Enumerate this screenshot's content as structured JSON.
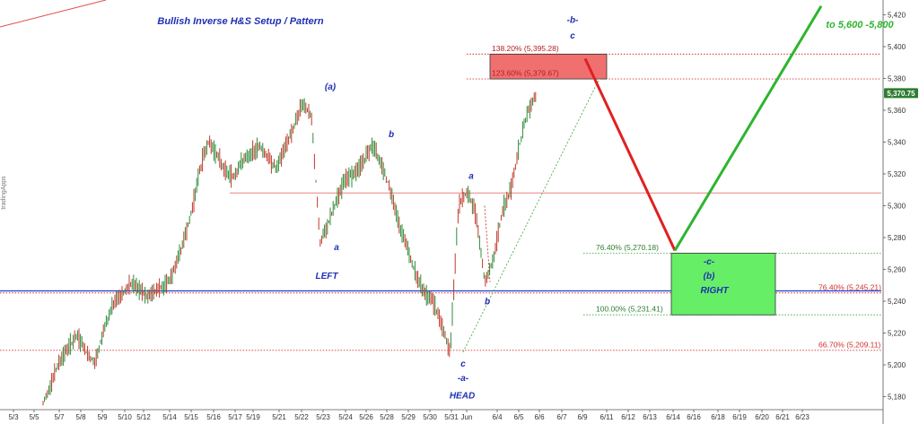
{
  "chart_data": {
    "type": "candlestick-annotated",
    "title": "Bullish Inverse H&S Setup / Pattern",
    "y_axis": {
      "ylim": [
        5170,
        5426
      ],
      "ticks": [
        "5,180",
        "5,200",
        "5,220",
        "5,240",
        "5,260",
        "5,280",
        "5,300",
        "5,320",
        "5,340",
        "5,360",
        "5,380",
        "5,400",
        "5,420"
      ],
      "tick_values": [
        5180,
        5200,
        5220,
        5240,
        5260,
        5280,
        5300,
        5320,
        5340,
        5360,
        5380,
        5400,
        5420
      ]
    },
    "x_axis": {
      "ticks": [
        "5/3",
        "5/5",
        "5/7",
        "5/8",
        "5/9",
        "5/10",
        "5/12",
        "5/14",
        "5/15",
        "5/16",
        "5/17",
        "5/19",
        "5/21",
        "5/22",
        "5/23",
        "5/24",
        "5/26",
        "5/28",
        "5/29",
        "5/30",
        "5/31",
        "Jun",
        "6/4",
        "6/5",
        "6/6",
        "6/7",
        "6/9",
        "6/11",
        "6/12",
        "6/13",
        "6/14",
        "6/16",
        "6/18",
        "6/19",
        "6/20",
        "6/21",
        "6/23"
      ]
    },
    "current_price": {
      "label": "5,370.75",
      "value": 5370.75,
      "color": "#2e7d32"
    },
    "price_path": [
      [
        0,
        5175
      ],
      [
        1,
        5190
      ],
      [
        2,
        5203
      ],
      [
        3,
        5212
      ],
      [
        4,
        5218
      ],
      [
        5,
        5208
      ],
      [
        6,
        5200
      ],
      [
        7,
        5222
      ],
      [
        8,
        5238
      ],
      [
        9,
        5243
      ],
      [
        10,
        5251
      ],
      [
        11,
        5248
      ],
      [
        12,
        5242
      ],
      [
        13,
        5247
      ],
      [
        14,
        5250
      ],
      [
        15,
        5257
      ],
      [
        16,
        5274
      ],
      [
        17,
        5292
      ],
      [
        18,
        5320
      ],
      [
        19,
        5340
      ],
      [
        20,
        5333
      ],
      [
        21,
        5322
      ],
      [
        22,
        5318
      ],
      [
        23,
        5328
      ],
      [
        24,
        5332
      ],
      [
        25,
        5338
      ],
      [
        26,
        5330
      ],
      [
        27,
        5323
      ],
      [
        28,
        5338
      ],
      [
        29,
        5350
      ],
      [
        30,
        5365
      ],
      [
        31,
        5355
      ],
      [
        32,
        5276
      ],
      [
        33,
        5290
      ],
      [
        34,
        5305
      ],
      [
        35,
        5318
      ],
      [
        36,
        5320
      ],
      [
        37,
        5328
      ],
      [
        38,
        5338
      ],
      [
        39,
        5328
      ],
      [
        40,
        5312
      ],
      [
        41,
        5290
      ],
      [
        42,
        5275
      ],
      [
        43,
        5258
      ],
      [
        44,
        5245
      ],
      [
        45,
        5240
      ],
      [
        46,
        5225
      ],
      [
        47,
        5208
      ],
      [
        48,
        5302
      ],
      [
        49,
        5308
      ],
      [
        50,
        5295
      ],
      [
        51,
        5252
      ],
      [
        52,
        5266
      ],
      [
        53,
        5296
      ],
      [
        54,
        5310
      ],
      [
        55,
        5338
      ],
      [
        56,
        5360
      ],
      [
        57,
        5370.75
      ]
    ],
    "horizontal_lines": [
      {
        "value": 5395.28,
        "color": "#d32f2f",
        "style": "dotted"
      },
      {
        "value": 5379.67,
        "color": "#d32f2f",
        "style": "dotted"
      },
      {
        "value": 5308,
        "color": "#f08080",
        "style": "solid"
      },
      {
        "value": 5270.18,
        "color": "#4caf50",
        "style": "dotted"
      },
      {
        "value": 5245.21,
        "color": "#d32f2f",
        "style": "dotted"
      },
      {
        "value": 5246.5,
        "color": "#1a3fd1",
        "style": "solid"
      },
      {
        "value": 5231.41,
        "color": "#4caf50",
        "style": "dotted"
      },
      {
        "value": 5209.11,
        "color": "#d32f2f",
        "style": "dotted"
      }
    ],
    "level_labels": [
      {
        "text": "138.20% (5,395.28)",
        "value": 5395.28,
        "color": "#b71c1c"
      },
      {
        "text": "123.60% (5,379.67)",
        "value": 5379.67,
        "color": "#b71c1c"
      },
      {
        "text": "76.40% (5,270.18)",
        "value": 5270.18,
        "color": "#2e7d32"
      },
      {
        "text": "76.40% (5,245.21)",
        "value": 5245.21,
        "color": "#d32f2f"
      },
      {
        "text": "100.00% (5,231.41)",
        "value": 5231.41,
        "color": "#2e7d32"
      },
      {
        "text": "66.70% (5,209.11)",
        "value": 5209.11,
        "color": "#d32f2f"
      }
    ],
    "zones": [
      {
        "name": "resistance-zone",
        "y_from": 5379.67,
        "y_to": 5395.28,
        "fill": "#f07070",
        "stroke": "#333333"
      },
      {
        "name": "support-zone",
        "y_from": 5231.41,
        "y_to": 5270.18,
        "fill": "#66ee66",
        "stroke": "#333333"
      }
    ],
    "projection": [
      {
        "name": "down-leg",
        "from": 5395.28,
        "to": 5270.18,
        "color": "#e02020"
      },
      {
        "name": "up-leg",
        "from": 5270.18,
        "to": 5430,
        "color": "#2db52d"
      }
    ],
    "wave_labels": [
      {
        "text": "(a)",
        "value": 5373
      },
      {
        "text": "b",
        "value": 5343
      },
      {
        "text": "a",
        "value": 5317
      },
      {
        "text": "a",
        "value": 5272
      },
      {
        "text": "LEFT",
        "value": 5254
      },
      {
        "text": "b",
        "value": 5238
      },
      {
        "text": "c",
        "value": 5199
      },
      {
        "text": "-a-",
        "value": 5190
      },
      {
        "text": "HEAD",
        "value": 5179
      },
      {
        "text": "-b-",
        "value": 5415
      },
      {
        "text": "c",
        "value": 5405
      },
      {
        "text": "-c-",
        "value": 5263
      },
      {
        "text": "(b)",
        "value": 5254
      },
      {
        "text": "RIGHT",
        "value": 5245
      }
    ],
    "target_text": "to 5,600 -5,800",
    "watermark": "tradingApps"
  }
}
